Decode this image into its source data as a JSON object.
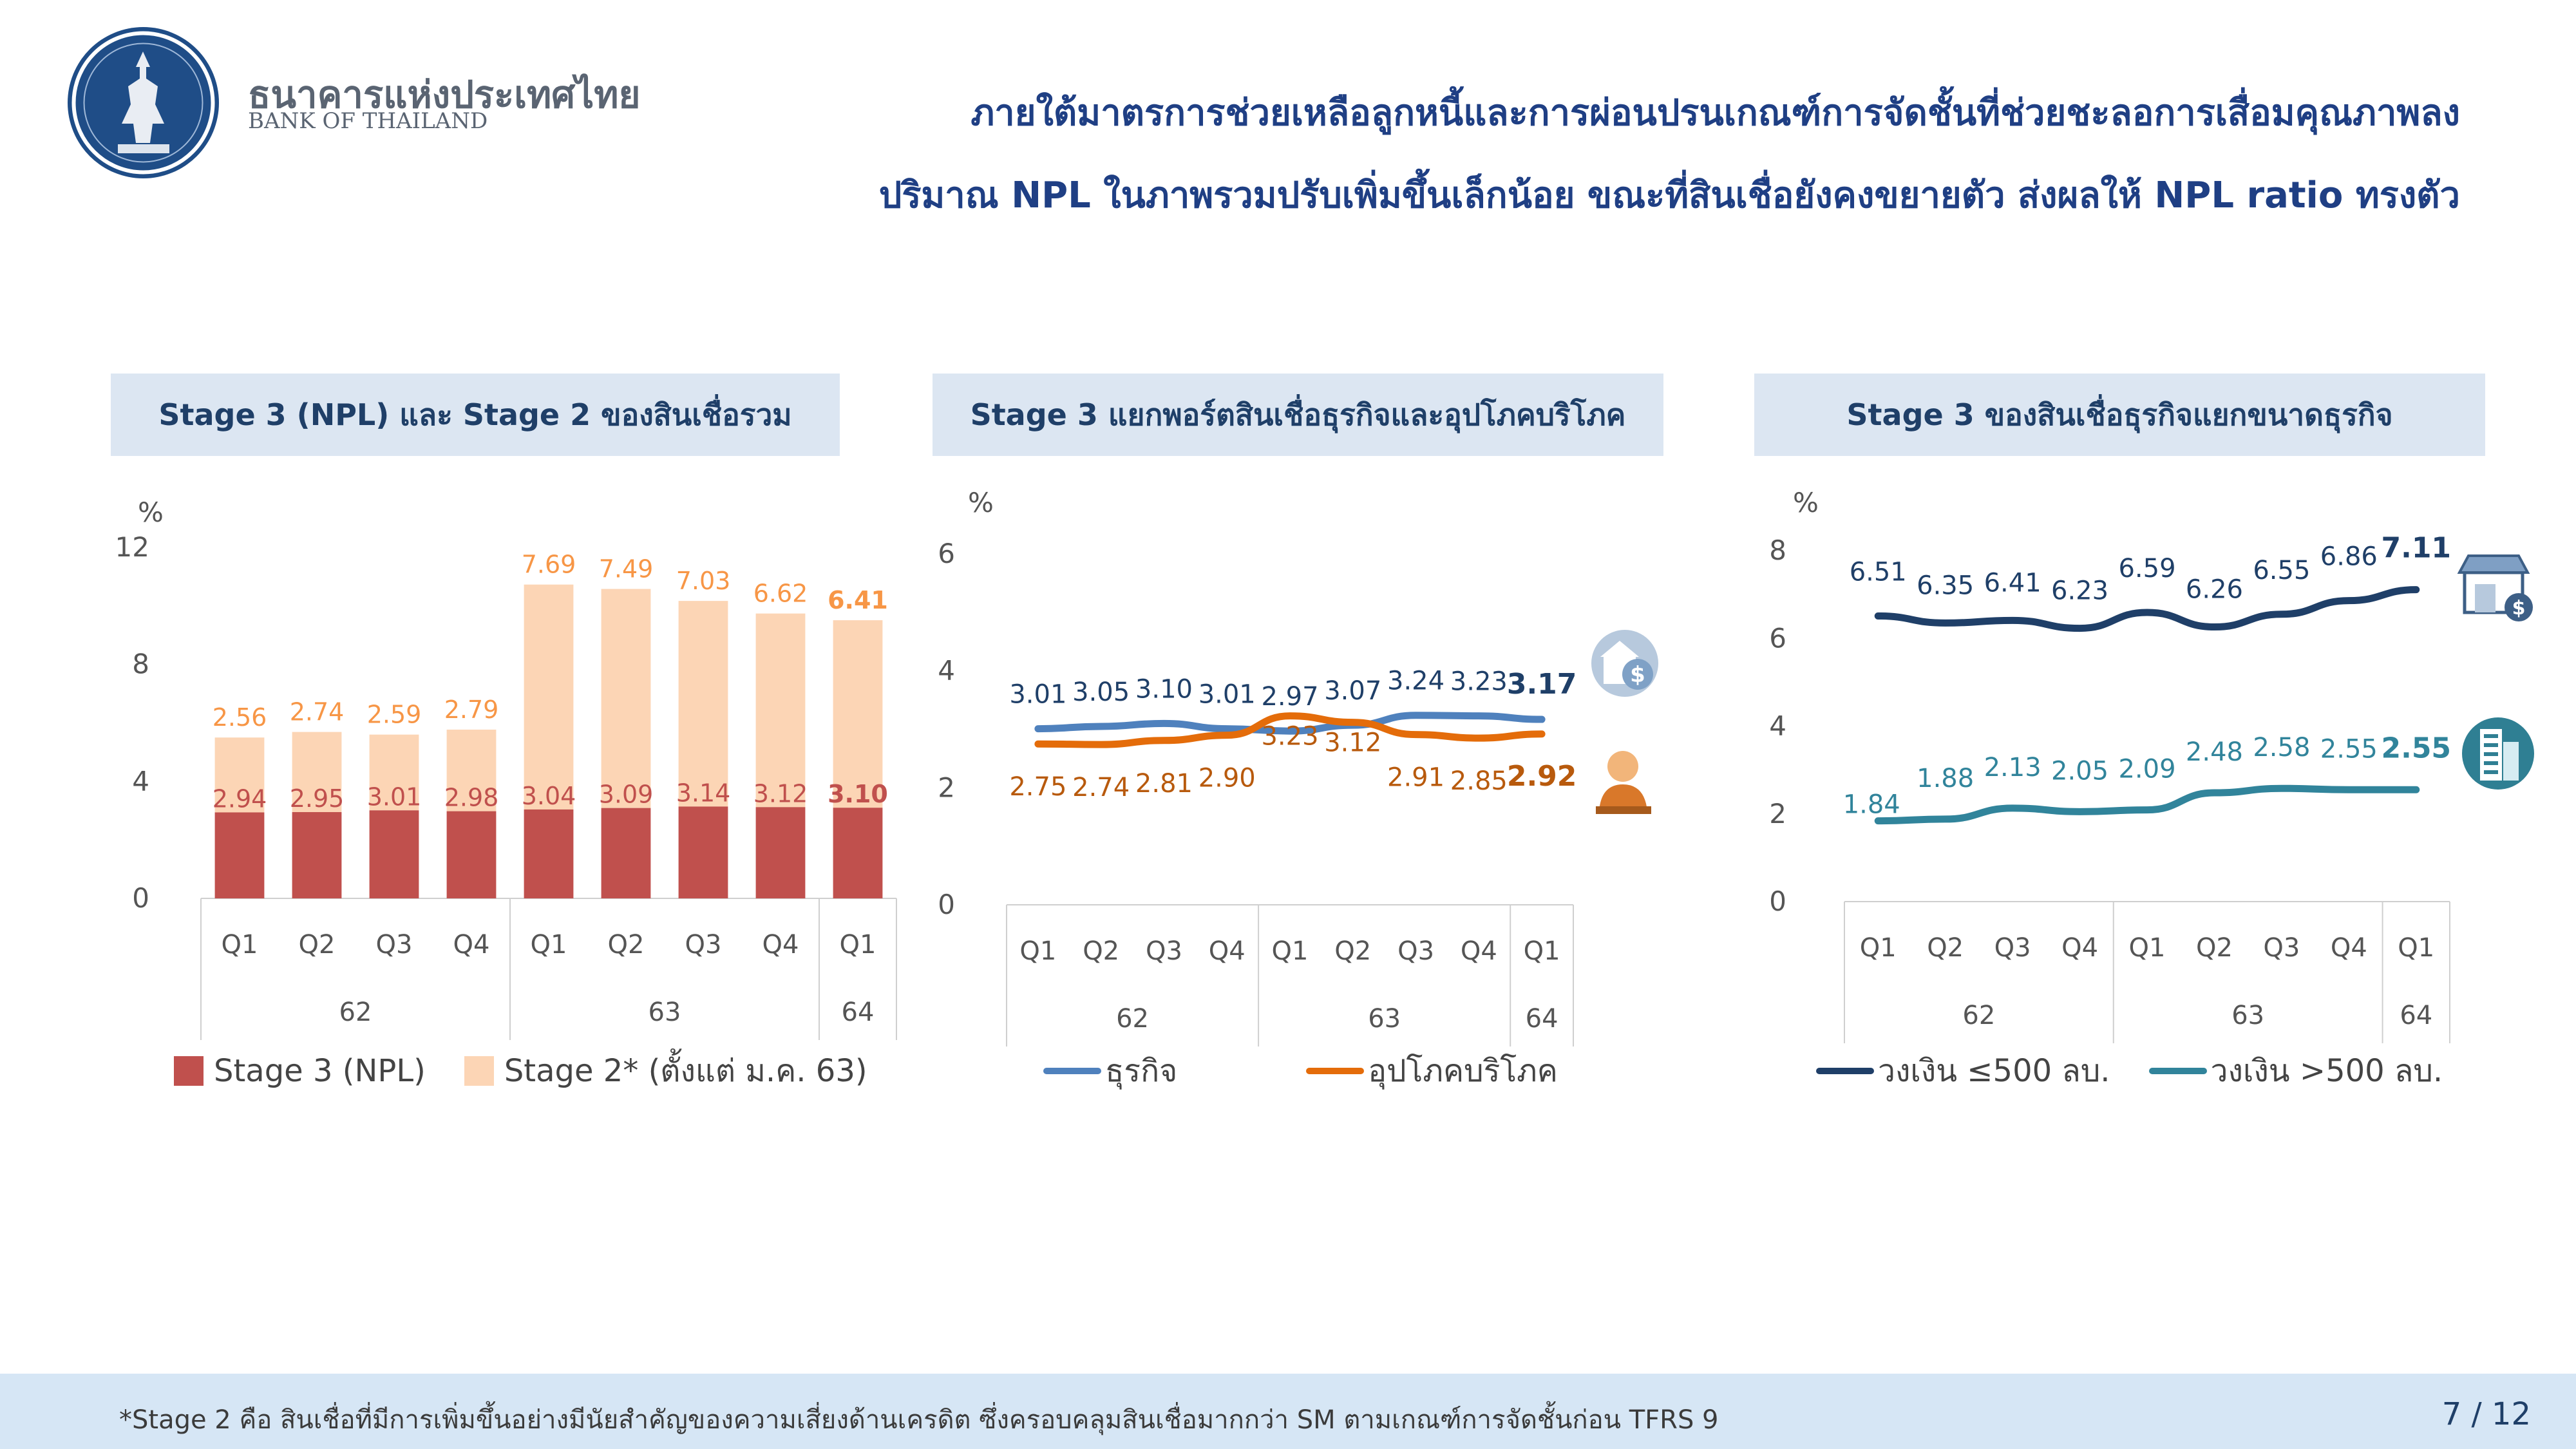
{
  "brand": {
    "name_th": "ธนาคารแห่งประเทศไทย",
    "name_en": "BANK OF THAILAND",
    "color": "#1f4d87"
  },
  "header": {
    "line1": "ภายใต้มาตรการช่วยเหลือลูกหนี้และการผ่อนปรนเกณฑ์การจัดชั้นที่ช่วยชะลอการเสื่อมคุณภาพลง",
    "line2": "ปริมาณ NPL ในภาพรวมปรับเพิ่มขึ้นเล็กน้อย ขณะที่สินเชื่อยังคงขยายตัว ส่งผลให้ NPL ratio ทรงตัว"
  },
  "footer": {
    "note": "*Stage 2 คือ สินเชื่อที่มีการเพิ่มขึ้นอย่างมีนัยสำคัญของความเสี่ยงด้านเครดิต ซึ่งครอบคลุมสินเชื่อมากกว่า SM ตามเกณฑ์การจัดชั้นก่อน TFRS 9",
    "page": "7 / 12"
  },
  "chart_data": [
    {
      "type": "bar",
      "stacked": true,
      "title": "Stage 3 (NPL) และ Stage 2 ของสินเชื่อรวม",
      "ylabel": "%",
      "ylim": [
        0,
        12
      ],
      "yticks": [
        "0",
        "4",
        "8",
        "12"
      ],
      "categories": [
        "Q1",
        "Q2",
        "Q3",
        "Q4",
        "Q1",
        "Q2",
        "Q3",
        "Q4",
        "Q1"
      ],
      "groups": [
        {
          "label": "62",
          "count": 4
        },
        {
          "label": "63",
          "count": 4
        },
        {
          "label": "64",
          "count": 1
        }
      ],
      "series": [
        {
          "name": "Stage 3 (NPL)",
          "color": "#c0504d",
          "values": [
            2.94,
            2.95,
            3.01,
            2.98,
            3.04,
            3.09,
            3.14,
            3.12,
            3.1
          ],
          "labels": [
            "2.94",
            "2.95",
            "3.01",
            "2.98",
            "3.04",
            "3.09",
            "3.14",
            "3.12",
            "3.10"
          ]
        },
        {
          "name": "Stage 2* (ตั้งแต่ ม.ค. 63)",
          "color": "#fcd5b5",
          "label_color": "#f79646",
          "values": [
            2.56,
            2.74,
            2.59,
            2.79,
            7.69,
            7.49,
            7.03,
            6.62,
            6.41
          ],
          "labels": [
            "2.56",
            "2.74",
            "2.59",
            "2.79",
            "7.69",
            "7.49",
            "7.03",
            "6.62",
            "6.41"
          ]
        }
      ]
    },
    {
      "type": "line",
      "title": "Stage 3 แยกพอร์ตสินเชื่อธุรกิจและอุปโภคบริโภค",
      "ylabel": "%",
      "ylim": [
        0,
        6
      ],
      "yticks": [
        "0",
        "2",
        "4",
        "6"
      ],
      "categories": [
        "Q1",
        "Q2",
        "Q3",
        "Q4",
        "Q1",
        "Q2",
        "Q3",
        "Q4",
        "Q1"
      ],
      "groups": [
        {
          "label": "62",
          "count": 4
        },
        {
          "label": "63",
          "count": 4
        },
        {
          "label": "64",
          "count": 1
        }
      ],
      "series": [
        {
          "name": "ธุรกิจ",
          "color": "#4f81bd",
          "label_color": "#1f3f68",
          "icon": "business-money-icon",
          "values": [
            3.01,
            3.05,
            3.1,
            3.01,
            2.97,
            3.07,
            3.24,
            3.23,
            3.17
          ],
          "labels": [
            "3.01",
            "3.05",
            "3.10",
            "3.01",
            "2.97",
            "3.07",
            "3.24",
            "3.23",
            "3.17"
          ]
        },
        {
          "name": "อุปโภคบริโภค",
          "color": "#e46c0a",
          "label_color": "#b85a0d",
          "icon": "consumer-person-icon",
          "values": [
            2.75,
            2.74,
            2.81,
            2.9,
            3.23,
            3.12,
            2.91,
            2.85,
            2.92
          ],
          "labels": [
            "2.75",
            "2.74",
            "2.81",
            "2.90",
            "3.23",
            "3.12",
            "2.91",
            "2.85",
            "2.92"
          ]
        }
      ]
    },
    {
      "type": "line",
      "title": "Stage 3 ของสินเชื่อธุรกิจแยกขนาดธุรกิจ",
      "ylabel": "%",
      "ylim": [
        0,
        8
      ],
      "yticks": [
        "0",
        "2",
        "4",
        "6",
        "8"
      ],
      "categories": [
        "Q1",
        "Q2",
        "Q3",
        "Q4",
        "Q1",
        "Q2",
        "Q3",
        "Q4",
        "Q1"
      ],
      "groups": [
        {
          "label": "62",
          "count": 4
        },
        {
          "label": "63",
          "count": 4
        },
        {
          "label": "64",
          "count": 1
        }
      ],
      "series": [
        {
          "name": "วงเงิน ≤500 ลบ.",
          "color": "#1f3f68",
          "label_color": "#1f3f68",
          "icon": "shop-icon",
          "values": [
            6.51,
            6.35,
            6.41,
            6.23,
            6.59,
            6.26,
            6.55,
            6.86,
            7.11
          ],
          "labels": [
            "6.51",
            "6.35",
            "6.41",
            "6.23",
            "6.59",
            "6.26",
            "6.55",
            "6.86",
            "7.11"
          ]
        },
        {
          "name": "วงเงิน >500 ลบ.",
          "color": "#31849b",
          "label_color": "#31849b",
          "icon": "office-building-icon",
          "values": [
            1.84,
            1.88,
            2.13,
            2.05,
            2.09,
            2.48,
            2.58,
            2.55,
            2.55
          ],
          "labels": [
            "1.84",
            "1.88",
            "2.13",
            "2.05",
            "2.09",
            "2.48",
            "2.58",
            "2.55",
            "2.55"
          ]
        }
      ]
    }
  ]
}
